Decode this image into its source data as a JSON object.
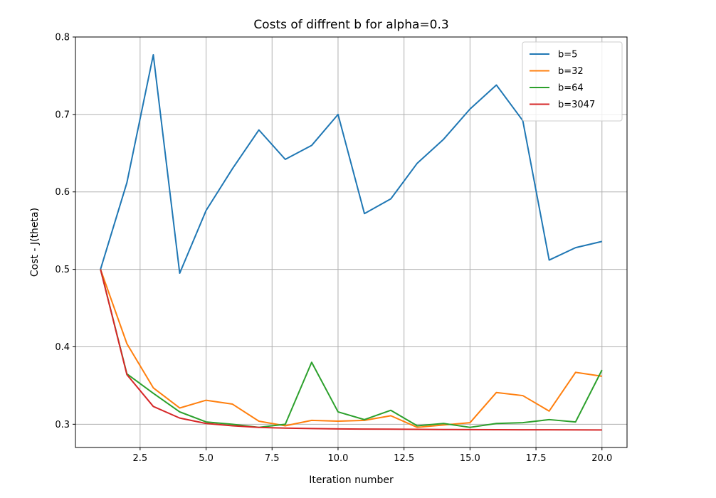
{
  "chart_data": {
    "type": "line",
    "title": "Costs of diffrent b for alpha=0.3",
    "xlabel": "Iteration number",
    "ylabel": "Cost - J(theta)",
    "xlim": [
      0.05,
      20.95
    ],
    "ylim": [
      0.27,
      0.8
    ],
    "xticks": [
      2.5,
      5.0,
      7.5,
      10.0,
      12.5,
      15.0,
      17.5,
      20.0
    ],
    "xtick_labels": [
      "2.5",
      "5.0",
      "7.5",
      "10.0",
      "12.5",
      "15.0",
      "17.5",
      "20.0"
    ],
    "yticks": [
      0.3,
      0.4,
      0.5,
      0.6,
      0.7,
      0.8
    ],
    "ytick_labels": [
      "0.3",
      "0.4",
      "0.5",
      "0.6",
      "0.7",
      "0.8"
    ],
    "grid": true,
    "legend_position": "top-right",
    "x": [
      1,
      2,
      3,
      4,
      5,
      6,
      7,
      8,
      9,
      10,
      11,
      12,
      13,
      14,
      15,
      16,
      17,
      18,
      19,
      20
    ],
    "series": [
      {
        "name": "b=5",
        "color": "#1f77b4",
        "values": [
          0.5,
          0.612,
          0.777,
          0.495,
          0.576,
          0.63,
          0.68,
          0.642,
          0.66,
          0.7,
          0.572,
          0.591,
          0.637,
          0.668,
          0.707,
          0.738,
          0.692,
          0.512,
          0.528,
          0.536
        ]
      },
      {
        "name": "b=32",
        "color": "#ff7f0e",
        "values": [
          0.5,
          0.404,
          0.347,
          0.321,
          0.331,
          0.326,
          0.304,
          0.298,
          0.305,
          0.304,
          0.305,
          0.311,
          0.296,
          0.299,
          0.302,
          0.341,
          0.337,
          0.317,
          0.367,
          0.362
        ]
      },
      {
        "name": "b=64",
        "color": "#2ca02c",
        "values": [
          0.5,
          0.365,
          0.34,
          0.316,
          0.303,
          0.3,
          0.296,
          0.3,
          0.38,
          0.316,
          0.306,
          0.318,
          0.298,
          0.301,
          0.296,
          0.301,
          0.302,
          0.306,
          0.303,
          0.37
        ]
      },
      {
        "name": "b=3047",
        "color": "#d62728",
        "values": [
          0.5,
          0.364,
          0.323,
          0.308,
          0.301,
          0.298,
          0.296,
          0.295,
          0.2945,
          0.294,
          0.2938,
          0.2936,
          0.2934,
          0.2932,
          0.2931,
          0.293,
          0.2929,
          0.2928,
          0.2927,
          0.2926
        ]
      }
    ]
  }
}
